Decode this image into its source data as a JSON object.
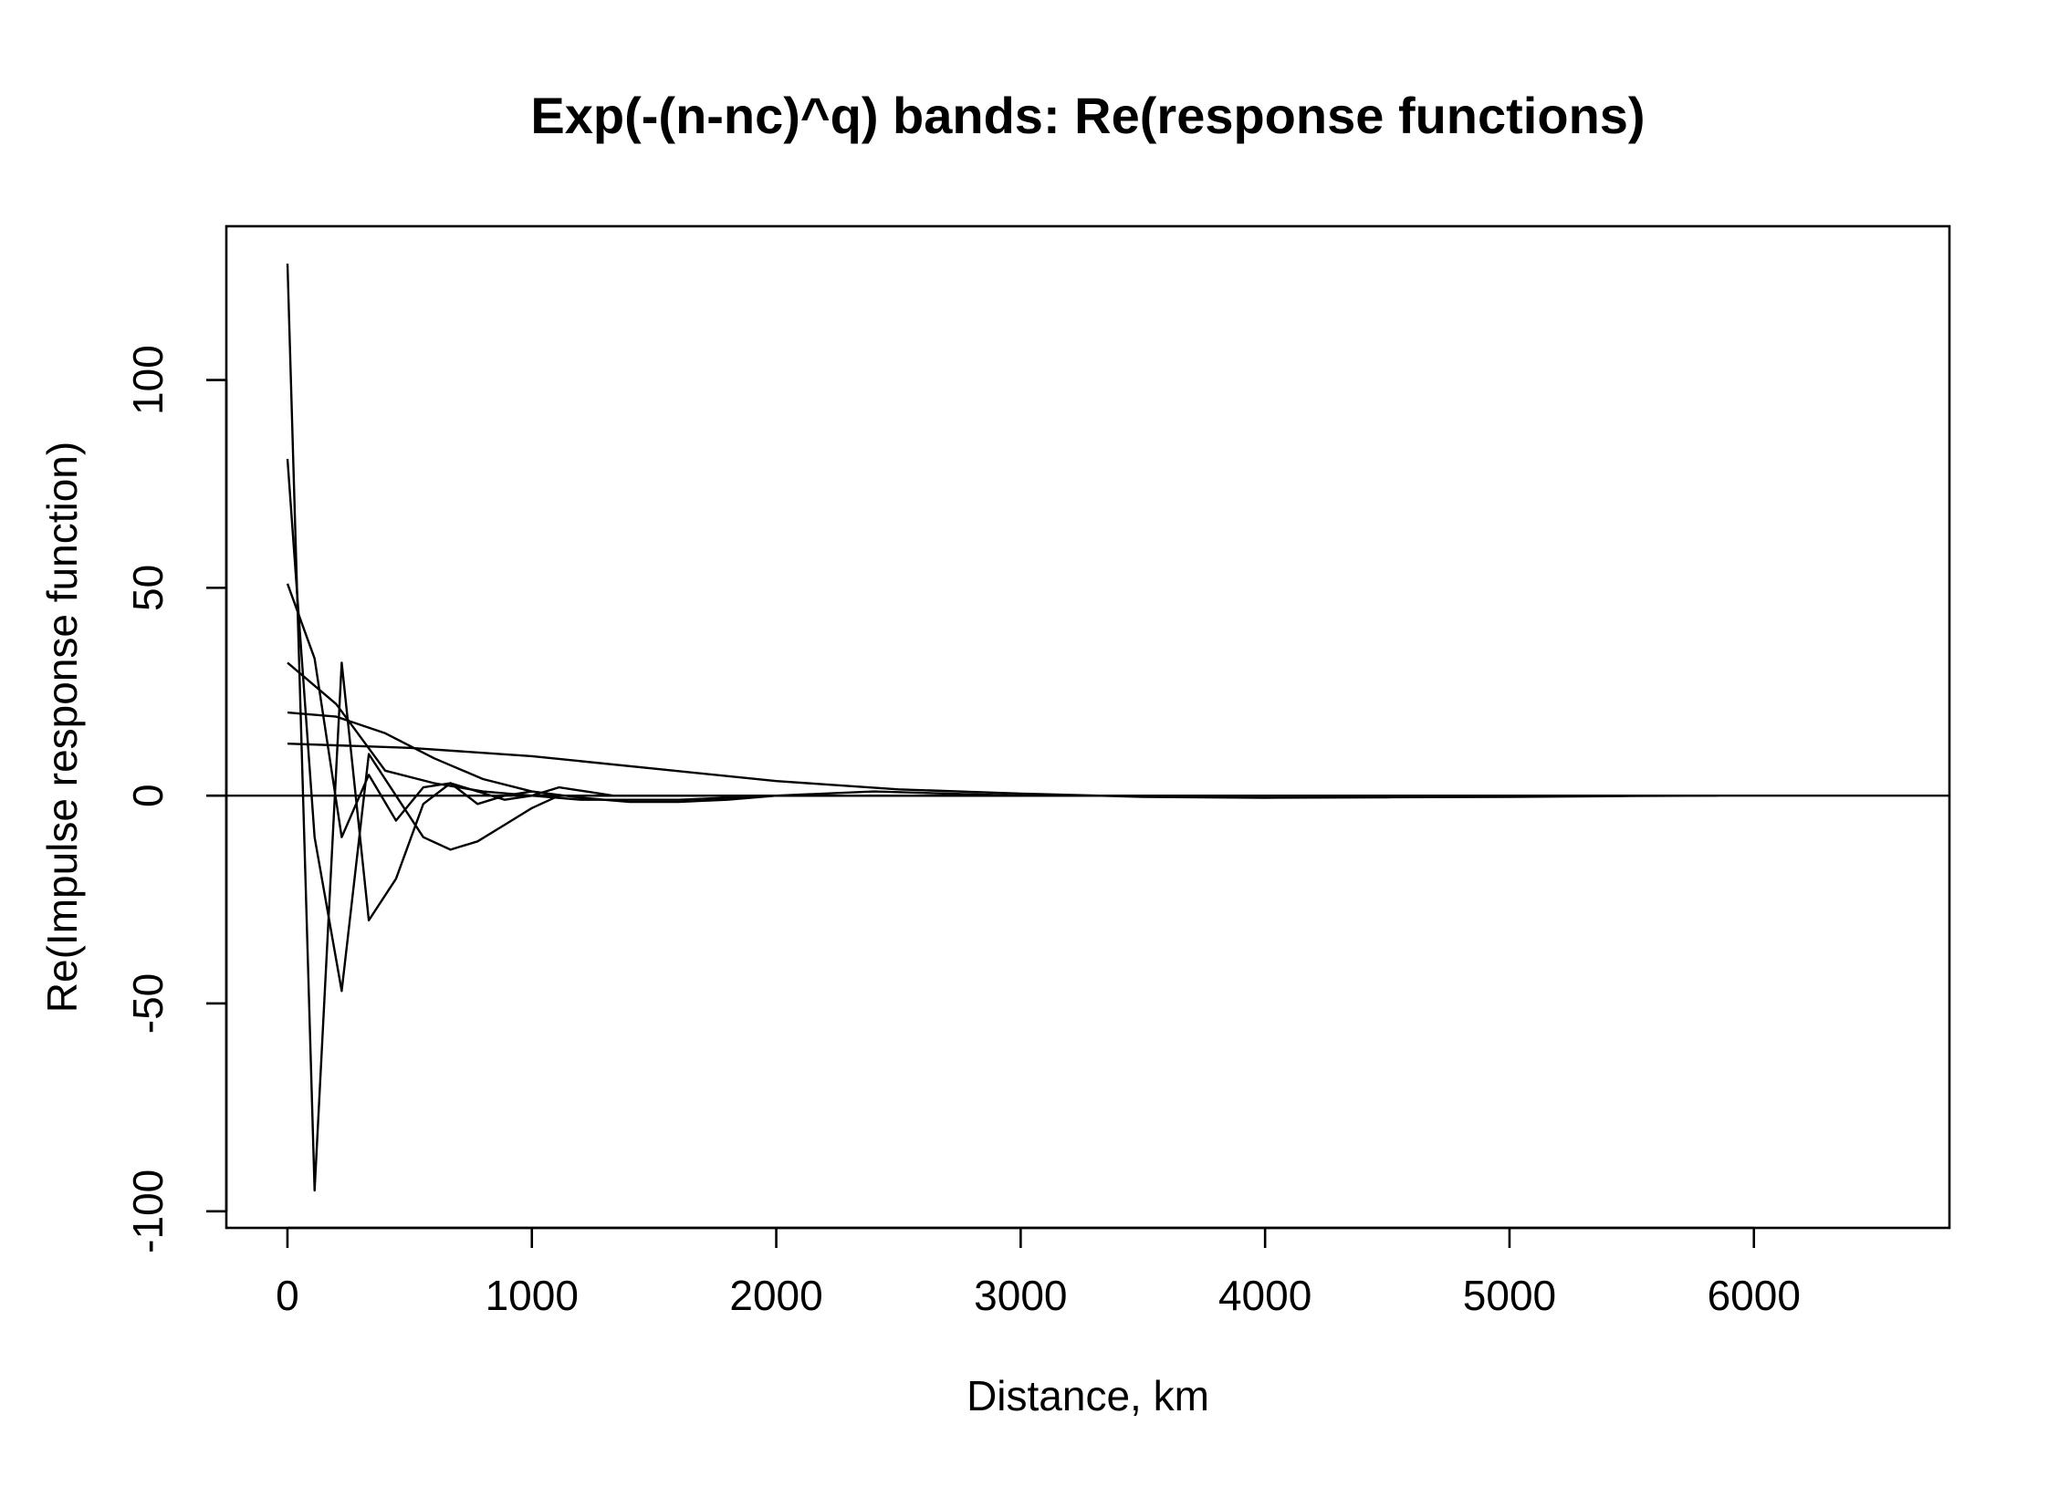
{
  "chart_data": {
    "type": "line",
    "title": "Exp(-(n-nc)^q) bands: Re(response functions)",
    "xlabel": "Distance, km",
    "ylabel": "Re(Impulse response function)",
    "xlim": [
      -250,
      6800
    ],
    "ylim": [
      -104,
      137
    ],
    "xticks": [
      0,
      1000,
      2000,
      3000,
      4000,
      5000,
      6000
    ],
    "yticks": [
      -100,
      -50,
      0,
      50,
      100
    ],
    "hline": 0,
    "series": [
      {
        "x": [
          0,
          111,
          222,
          333,
          444,
          556,
          667,
          778,
          889,
          1000,
          1111,
          1222,
          1333,
          1444,
          1556,
          1667,
          2000,
          2500,
          3000
        ],
        "y": [
          128,
          -95,
          32,
          -30,
          -20,
          -2,
          3,
          -2,
          0,
          1,
          0,
          0,
          0,
          0,
          0,
          0,
          0,
          0,
          0
        ]
      },
      {
        "x": [
          0,
          111,
          222,
          333,
          444,
          556,
          667,
          778,
          889,
          1000,
          1111,
          1222,
          1333,
          1444,
          1556,
          1667,
          2000,
          2500,
          3000
        ],
        "y": [
          81,
          -10,
          -47,
          10,
          0,
          -10,
          -13,
          -11,
          -7,
          -3,
          0,
          0,
          0,
          0,
          0,
          0,
          0,
          0,
          0
        ]
      },
      {
        "x": [
          0,
          111,
          222,
          333,
          444,
          556,
          667,
          778,
          889,
          1000,
          1111,
          1222,
          1333,
          1444,
          1556,
          1667,
          2000,
          2500,
          3000
        ],
        "y": [
          51,
          33,
          -10,
          5,
          -6,
          2,
          3,
          1,
          -1,
          0,
          2,
          1,
          0,
          0,
          0,
          0,
          0,
          0,
          0
        ]
      },
      {
        "x": [
          0,
          200,
          400,
          600,
          800,
          1000,
          1200,
          1400,
          1600,
          1800,
          2000,
          2500,
          3000
        ],
        "y": [
          32,
          22,
          6,
          3,
          1,
          0,
          -1,
          -1,
          -1,
          -0.5,
          0,
          0,
          0
        ]
      },
      {
        "x": [
          0,
          200,
          400,
          600,
          800,
          1000,
          1200,
          1400,
          1600,
          1800,
          2000,
          2400,
          3000,
          3500
        ],
        "y": [
          20,
          19,
          15,
          9,
          4,
          1,
          -0.5,
          -1.5,
          -1.5,
          -1,
          0,
          1,
          0,
          0
        ]
      },
      {
        "x": [
          0,
          500,
          1000,
          1500,
          2000,
          2500,
          3000,
          3500,
          4000,
          4500,
          5000,
          5500,
          5850
        ],
        "y": [
          12.5,
          11.5,
          9.5,
          6.5,
          3.5,
          1.5,
          0.5,
          -0.3,
          -0.5,
          -0.4,
          -0.3,
          -0.1,
          0
        ]
      }
    ]
  }
}
